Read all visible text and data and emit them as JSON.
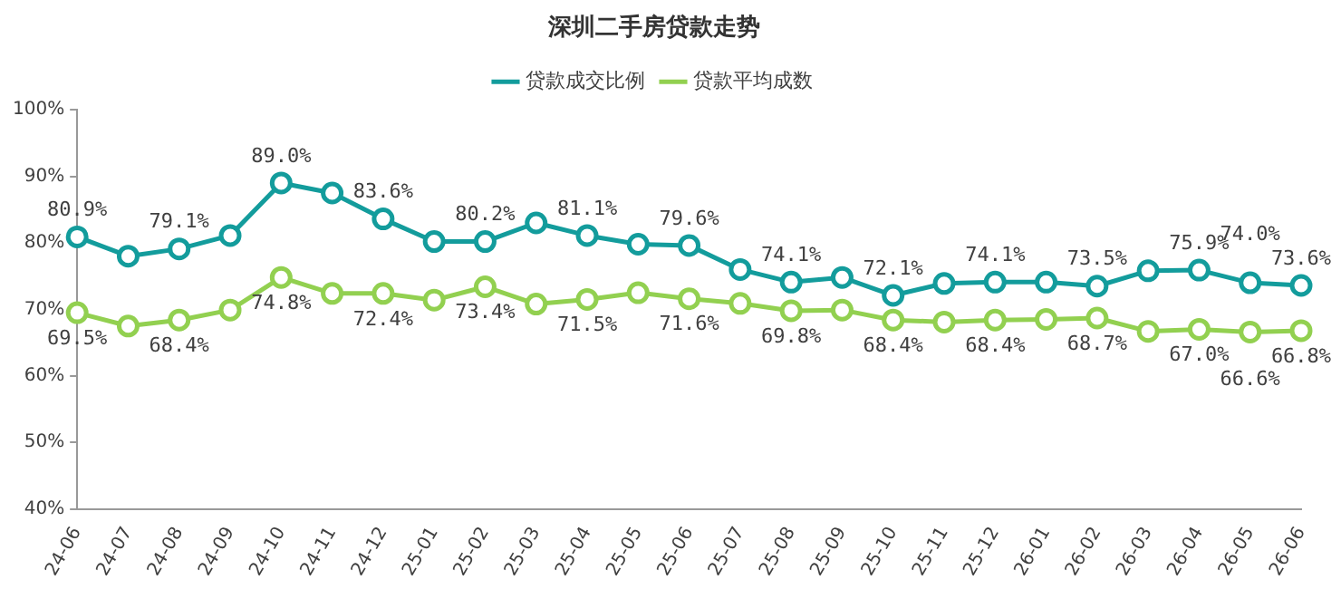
{
  "chart_data": {
    "type": "line",
    "title": "深圳二手房贷款走势",
    "categories": [
      "24-06",
      "24-07",
      "24-08",
      "24-09",
      "24-10",
      "24-11",
      "24-12",
      "25-01",
      "25-02",
      "25-03",
      "25-04",
      "25-05",
      "25-06",
      "25-07",
      "25-08",
      "25-09",
      "25-10",
      "25-11",
      "25-12",
      "26-01",
      "26-02",
      "26-03",
      "26-04",
      "26-05",
      "26-06"
    ],
    "series": [
      {
        "name": "贷款成交比例",
        "color": "#139c9c",
        "values": [
          80.9,
          78.0,
          79.1,
          81.1,
          89.0,
          87.5,
          83.6,
          80.2,
          80.2,
          83.0,
          81.1,
          79.8,
          79.6,
          76.0,
          74.1,
          74.8,
          72.1,
          73.9,
          74.1,
          74.1,
          73.5,
          75.8,
          75.9,
          74.0,
          73.6
        ],
        "value_labels": [
          "80.9%",
          null,
          "79.1%",
          null,
          "89.0%",
          null,
          "83.6%",
          null,
          "80.2%",
          null,
          "81.1%",
          null,
          "79.6%",
          null,
          "74.1%",
          null,
          "72.1%",
          null,
          "74.1%",
          null,
          "73.5%",
          null,
          "75.9%",
          "74.0%",
          "73.6%"
        ]
      },
      {
        "name": "贷款平均成数",
        "color": "#92d050",
        "values": [
          69.5,
          67.5,
          68.4,
          69.9,
          74.8,
          72.4,
          72.4,
          71.4,
          73.4,
          70.8,
          71.5,
          72.5,
          71.6,
          70.9,
          69.8,
          69.9,
          68.4,
          68.1,
          68.4,
          68.5,
          68.7,
          66.7,
          67.0,
          66.6,
          66.8
        ],
        "value_labels": [
          "69.5%",
          null,
          "68.4%",
          null,
          "74.8%",
          null,
          "72.4%",
          null,
          "73.4%",
          null,
          "71.5%",
          null,
          "71.6%",
          null,
          "69.8%",
          null,
          "68.4%",
          null,
          "68.4%",
          null,
          "68.7%",
          null,
          "67.0%",
          "66.6%",
          "66.8%"
        ]
      }
    ],
    "ylim": [
      40,
      100
    ],
    "yticks": [
      {
        "value": 40,
        "label": "40%"
      },
      {
        "value": 50,
        "label": "50%"
      },
      {
        "value": 60,
        "label": "60%"
      },
      {
        "value": 70,
        "label": "70%"
      },
      {
        "value": 80,
        "label": "80%"
      },
      {
        "value": 90,
        "label": "90%"
      },
      {
        "value": 100,
        "label": "100%"
      }
    ],
    "legend": "top",
    "grid": false,
    "marker": "circle",
    "line_style": "solid"
  }
}
